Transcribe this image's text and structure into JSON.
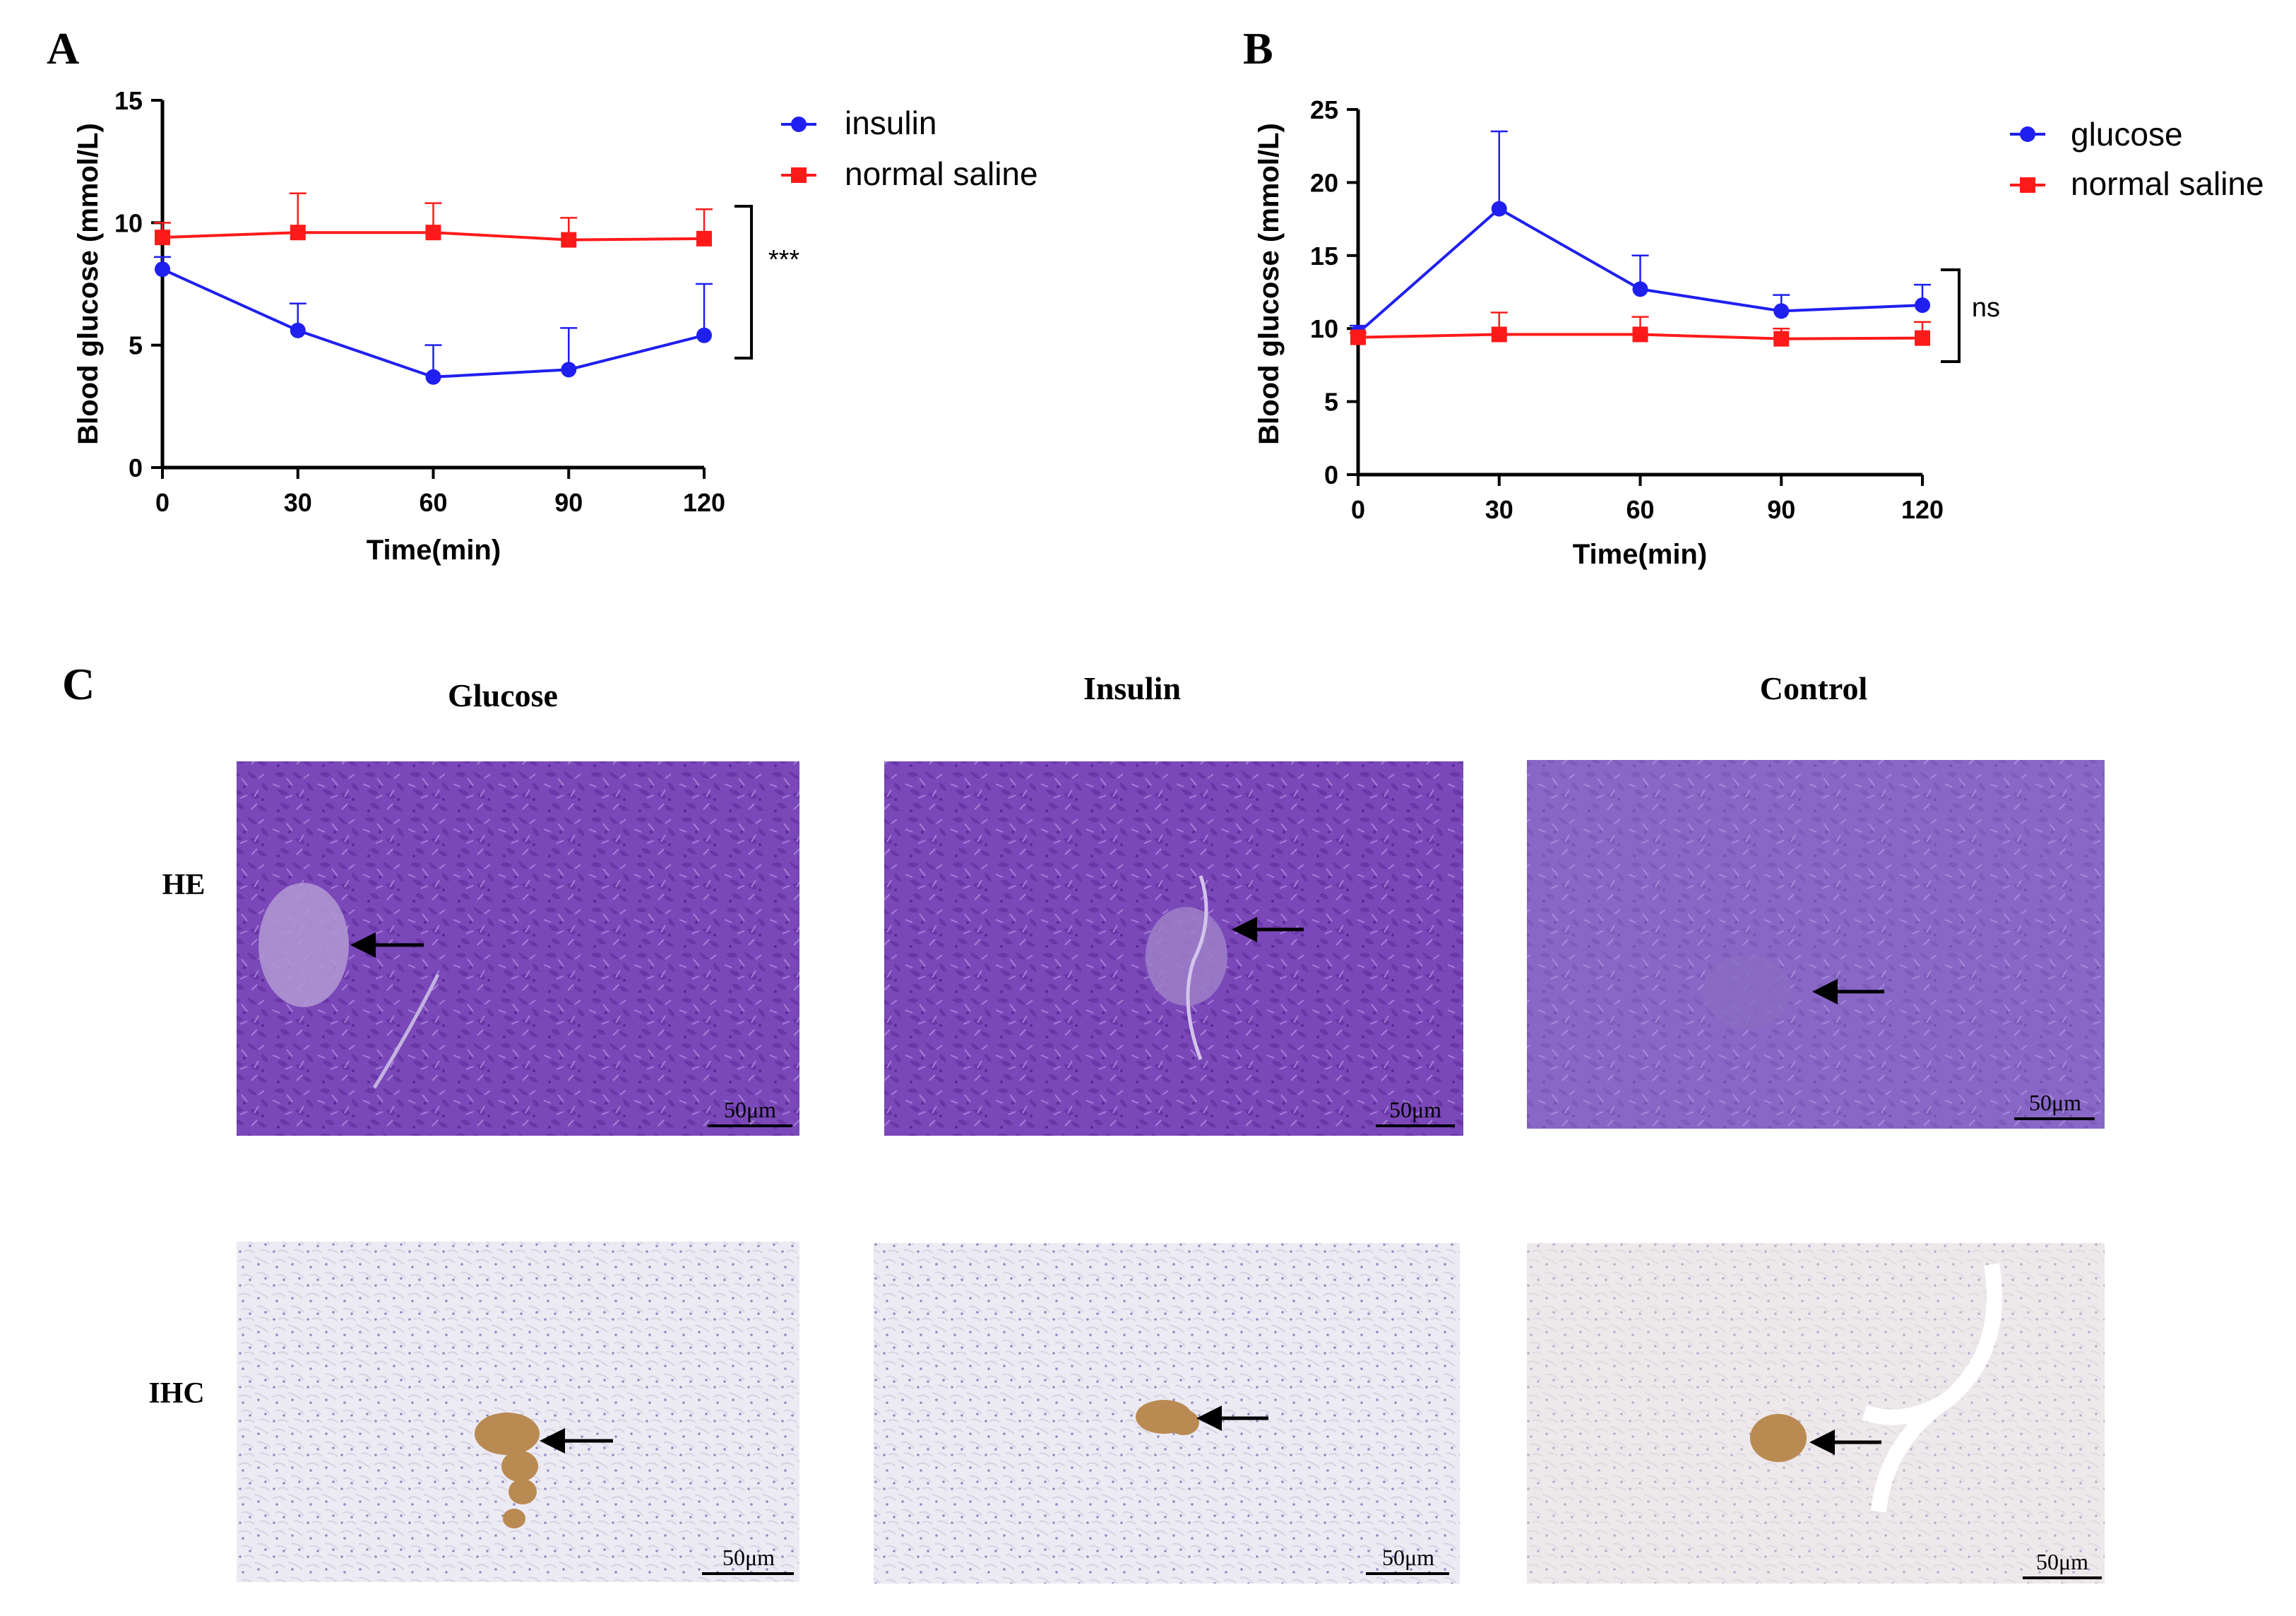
{
  "panels": {
    "A": "A",
    "B": "B",
    "C": "C"
  },
  "colors": {
    "blue": "#1f1ff0",
    "red": "#ff1a1a",
    "he_base": "#7a48b8",
    "ihc_base": "#eceaf3",
    "stain": "#b98a52"
  },
  "chart_data": [
    {
      "id": "A",
      "type": "line",
      "xlabel": "Time(min)",
      "ylabel": "Blood glucose (mmol/L)",
      "x": [
        0,
        30,
        60,
        90,
        120
      ],
      "xticks": [
        "0",
        "30",
        "60",
        "90",
        "120"
      ],
      "yticks": [
        "0",
        "5",
        "10",
        "15"
      ],
      "xlim": [
        0,
        120
      ],
      "ylim": [
        0,
        15
      ],
      "legend_position": "top-right",
      "significance": "***",
      "series": [
        {
          "name": "insulin",
          "marker": "circle",
          "color": "#1f1ff0",
          "values": [
            8.1,
            5.6,
            3.7,
            4.0,
            5.4
          ],
          "err": [
            0.5,
            1.1,
            1.3,
            1.7,
            2.1
          ]
        },
        {
          "name": "normal saline",
          "marker": "square",
          "color": "#ff1a1a",
          "values": [
            9.4,
            9.6,
            9.6,
            9.3,
            9.35
          ],
          "err": [
            0.6,
            1.6,
            1.2,
            0.9,
            1.2
          ]
        }
      ]
    },
    {
      "id": "B",
      "type": "line",
      "xlabel": "Time(min)",
      "ylabel": "Blood glucose (mmol/L)",
      "x": [
        0,
        30,
        60,
        90,
        120
      ],
      "xticks": [
        "0",
        "30",
        "60",
        "90",
        "120"
      ],
      "yticks": [
        "0",
        "5",
        "10",
        "15",
        "20",
        "25"
      ],
      "xlim": [
        0,
        120
      ],
      "ylim": [
        0,
        25
      ],
      "legend_position": "top-right",
      "significance": "ns",
      "series": [
        {
          "name": "glucose",
          "marker": "circle",
          "color": "#1f1ff0",
          "values": [
            9.7,
            18.2,
            12.7,
            11.2,
            11.6
          ],
          "err": [
            0.5,
            5.3,
            2.3,
            1.1,
            1.4
          ]
        },
        {
          "name": "normal saline",
          "marker": "square",
          "color": "#ff1a1a",
          "values": [
            9.4,
            9.6,
            9.6,
            9.3,
            9.35
          ],
          "err": [
            0.3,
            1.5,
            1.2,
            0.7,
            1.1
          ]
        }
      ]
    }
  ],
  "histology": {
    "columns": [
      "Glucose",
      "Insulin",
      "Control"
    ],
    "rows": [
      "HE",
      "IHC"
    ],
    "scale_bar": "50μm"
  }
}
